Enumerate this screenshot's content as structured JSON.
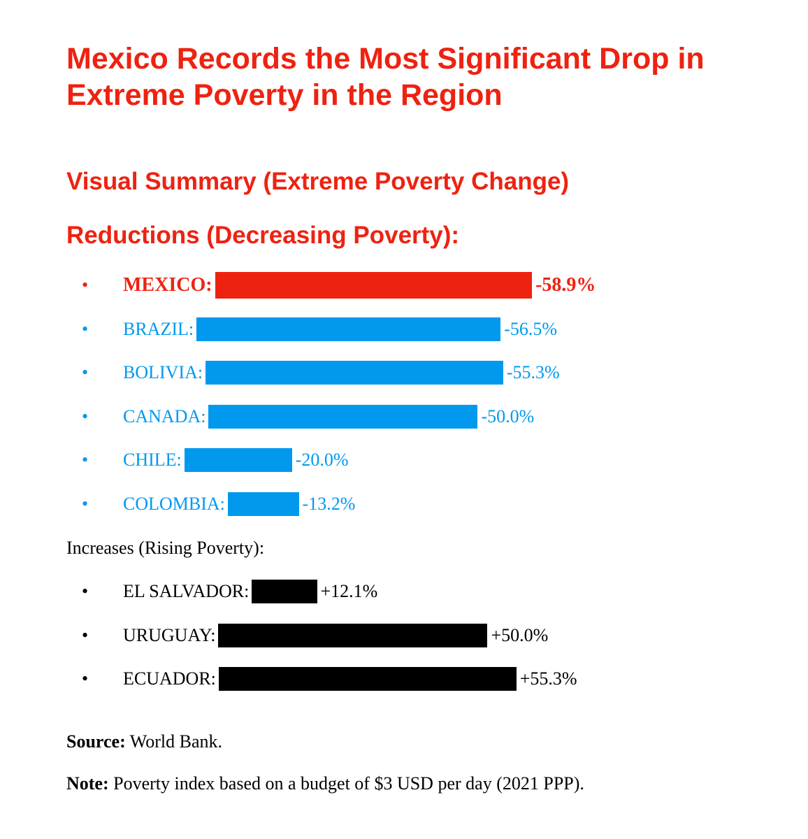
{
  "colors": {
    "title": "#ee2211",
    "highlight": "#ee2211",
    "reduction": "#0099ee",
    "increase": "#000000"
  },
  "title": "Mexico Records the Most Significant Drop in Extreme Poverty in the Region",
  "subtitle": "Visual Summary (Extreme Poverty Change)",
  "chart_data": {
    "type": "bar",
    "orientation": "horizontal",
    "unit": "%",
    "groups": [
      {
        "heading": "Reductions (Decreasing Poverty):",
        "items": [
          {
            "label": "MEXICO:",
            "value": -58.9,
            "display": "-58.9%",
            "highlight": true
          },
          {
            "label": "BRAZIL:",
            "value": -56.5,
            "display": "-56.5%"
          },
          {
            "label": "BOLIVIA:",
            "value": -55.3,
            "display": "-55.3%"
          },
          {
            "label": "CANADA:",
            "value": -50.0,
            "display": "-50.0%"
          },
          {
            "label": "CHILE:",
            "value": -20.0,
            "display": "-20.0%"
          },
          {
            "label": "COLOMBIA:",
            "value": -13.2,
            "display": "-13.2%"
          }
        ]
      },
      {
        "heading": "Increases (Rising Poverty):",
        "items": [
          {
            "label": "EL SALVADOR:",
            "value": 12.1,
            "display": "+12.1%"
          },
          {
            "label": "URUGUAY:",
            "value": 50.0,
            "display": "+50.0%"
          },
          {
            "label": "ECUADOR:",
            "value": 55.3,
            "display": "+55.3%"
          }
        ]
      }
    ]
  },
  "footer": {
    "source_label": "Source:",
    "source_text": " World Bank.",
    "note_label": "Note:",
    "note_text": " Poverty index based on a budget of $3 USD per day (2021 PPP)."
  }
}
